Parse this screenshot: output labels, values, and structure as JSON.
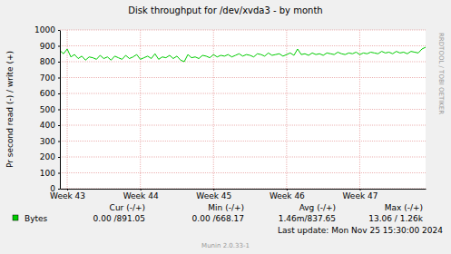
{
  "chart_data": {
    "type": "line",
    "title": "Disk throughput for /dev/xvda3 - by month",
    "y_label": "Pr second read (-) / write (+)",
    "x": [
      42.9,
      42.95,
      43.0,
      43.05,
      43.1,
      43.15,
      43.2,
      43.25,
      43.3,
      43.35,
      43.4,
      43.45,
      43.5,
      43.55,
      43.6,
      43.65,
      43.7,
      43.75,
      43.8,
      43.85,
      43.9,
      43.95,
      44.0,
      44.05,
      44.1,
      44.15,
      44.2,
      44.25,
      44.3,
      44.35,
      44.4,
      44.45,
      44.5,
      44.55,
      44.6,
      44.65,
      44.7,
      44.75,
      44.8,
      44.85,
      44.9,
      44.95,
      45.0,
      45.05,
      45.1,
      45.15,
      45.2,
      45.25,
      45.3,
      45.35,
      45.4,
      45.45,
      45.5,
      45.55,
      45.6,
      45.65,
      45.7,
      45.75,
      45.8,
      45.85,
      45.9,
      45.95,
      46.0,
      46.05,
      46.1,
      46.15,
      46.2,
      46.25,
      46.3,
      46.35,
      46.4,
      46.45,
      46.5,
      46.55,
      46.6,
      46.65,
      46.7,
      46.75,
      46.8,
      46.85,
      46.9,
      46.95,
      47.0,
      47.05,
      47.1,
      47.15,
      47.2,
      47.25,
      47.3,
      47.35,
      47.4,
      47.45,
      47.5,
      47.55,
      47.6,
      47.65,
      47.7,
      47.75,
      47.8,
      47.85,
      47.9
    ],
    "series": [
      {
        "name": "Bytes",
        "color": "#00cc00",
        "values": [
          870,
          850,
          880,
          830,
          845,
          820,
          835,
          810,
          830,
          825,
          815,
          840,
          820,
          830,
          810,
          835,
          825,
          815,
          840,
          820,
          830,
          845,
          815,
          825,
          835,
          820,
          850,
          815,
          830,
          825,
          840,
          820,
          835,
          810,
          800,
          845,
          825,
          830,
          820,
          840,
          835,
          825,
          845,
          830,
          840,
          835,
          845,
          830,
          840,
          850,
          835,
          845,
          840,
          830,
          850,
          845,
          835,
          855,
          840,
          845,
          850,
          835,
          845,
          855,
          840,
          880,
          845,
          850,
          840,
          855,
          845,
          850,
          840,
          855,
          850,
          845,
          860,
          850,
          845,
          855,
          850,
          860,
          845,
          855,
          850,
          860,
          855,
          850,
          865,
          855,
          860,
          850,
          865,
          855,
          860,
          850,
          865,
          860,
          855,
          880,
          891
        ]
      }
    ],
    "xlim": [
      42.9,
      47.9
    ],
    "xticks": [
      {
        "value": 43,
        "label": "Week 43"
      },
      {
        "value": 44,
        "label": "Week 44"
      },
      {
        "value": 45,
        "label": "Week 45"
      },
      {
        "value": 46,
        "label": "Week 46"
      },
      {
        "value": 47,
        "label": "Week 47"
      }
    ],
    "ylim": [
      0,
      1000
    ],
    "yticks": [
      0,
      100,
      200,
      300,
      400,
      500,
      600,
      700,
      800,
      900,
      1000
    ],
    "grid": true,
    "stats": {
      "headers": [
        "Cur (-/+)",
        "Min (-/+)",
        "Avg (-/+)",
        "Max (-/+)"
      ],
      "cells": [
        "0.00 /891.05",
        "0.00 /668.17",
        "1.46m/837.65",
        "13.06 / 1.26k"
      ]
    },
    "footer": "Last update: Mon Nov 25 15:30:00 2024",
    "generator": "Munin 2.0.33-1",
    "watermark": "RRDTOOL / TOBI OETIKER"
  }
}
